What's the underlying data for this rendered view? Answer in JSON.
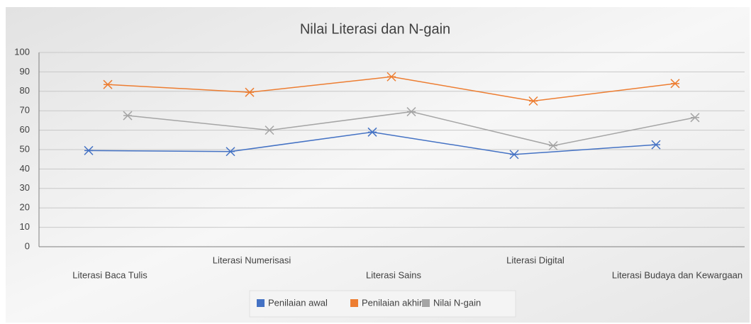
{
  "chart_data": {
    "type": "line",
    "title": "Nilai Literasi dan N-gain",
    "categories": [
      "Literasi Baca Tulis",
      "Literasi Numerisasi",
      "Literasi Sains",
      "Literasi Digital",
      "Literasi Budaya dan Kewargaan"
    ],
    "series": [
      {
        "name": "Penilaian awal",
        "color": "#4472c4",
        "values": [
          49.5,
          49,
          59,
          47.5,
          52.5
        ]
      },
      {
        "name": "Penilaian akhir",
        "color": "#ed7d31",
        "values": [
          83.5,
          79.5,
          87.5,
          75,
          84
        ]
      },
      {
        "name": "Nilai N-gain",
        "color": "#a5a5a5",
        "values": [
          67.5,
          60,
          69.5,
          52,
          66.5
        ]
      }
    ],
    "ylim": [
      0,
      100
    ],
    "yticks": [
      0,
      10,
      20,
      30,
      40,
      50,
      60,
      70,
      80,
      90,
      100
    ],
    "grid": true,
    "legend": "bottom"
  }
}
